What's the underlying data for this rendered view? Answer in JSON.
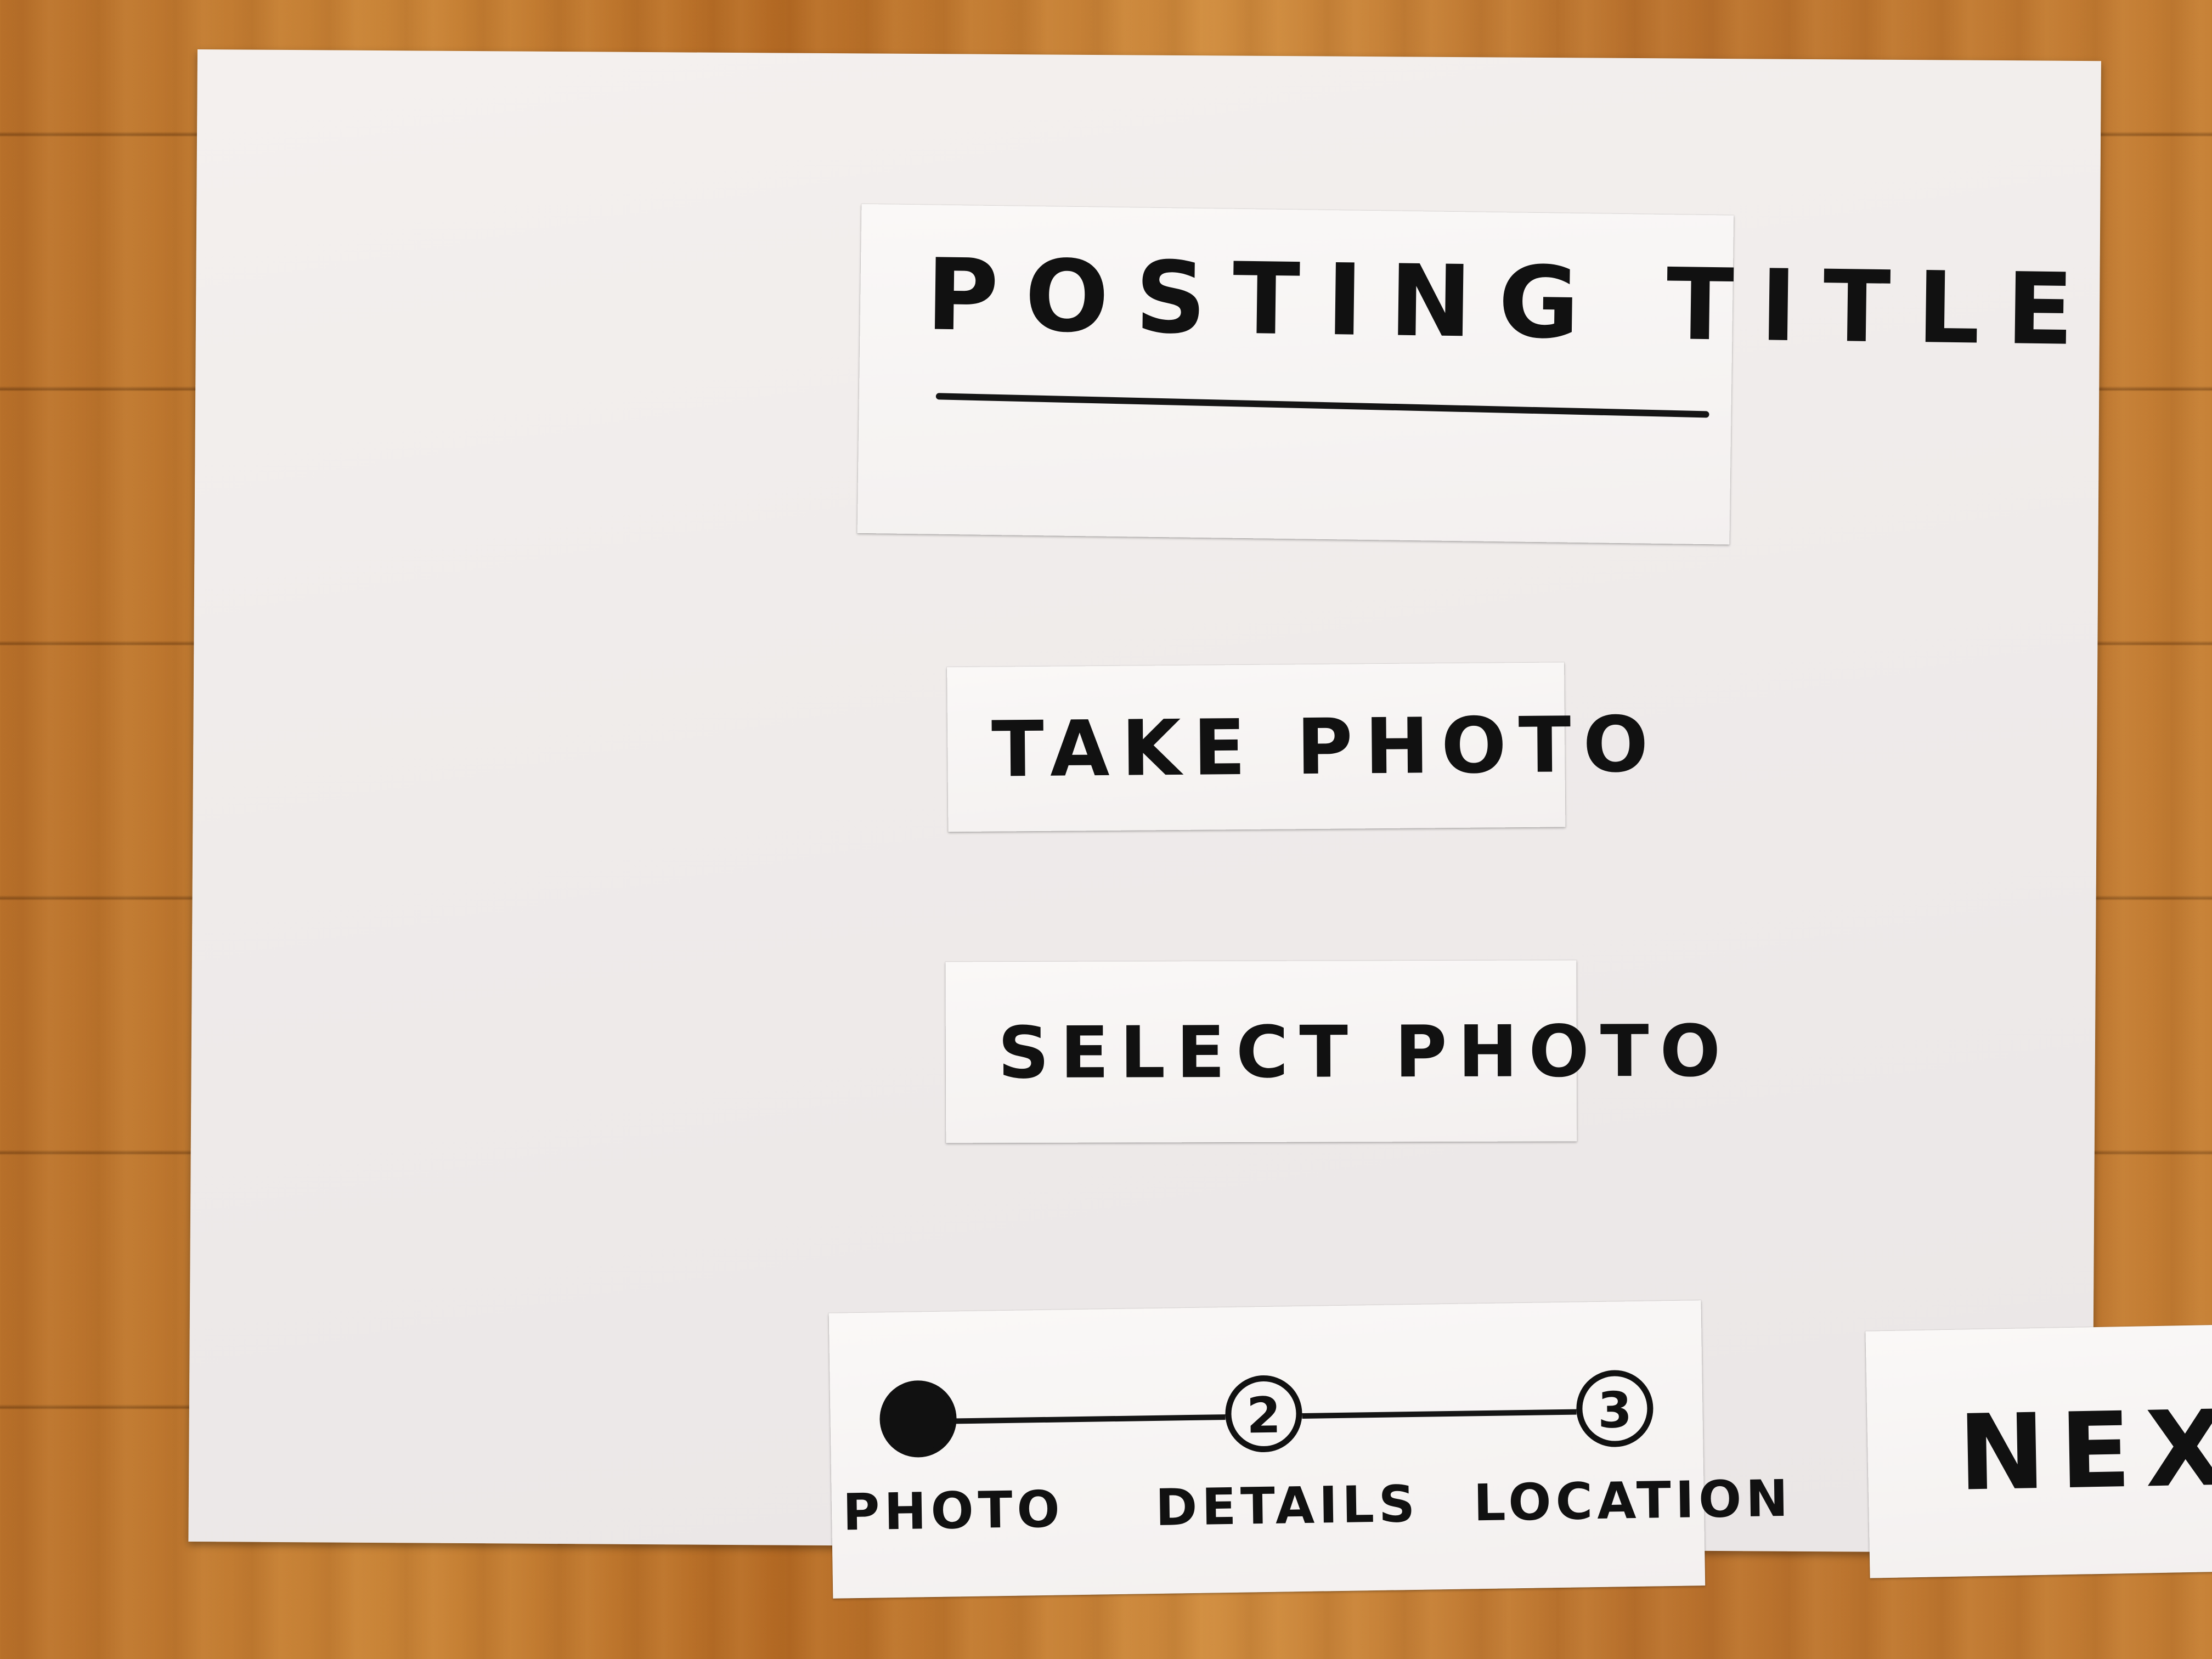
{
  "header": {
    "title": "POSTING TITLE"
  },
  "actions": {
    "take_photo_label": "TAKE PHOTO",
    "select_photo_label": "SELECT PHOTO"
  },
  "stepper": {
    "steps": [
      {
        "number": "",
        "label": "PHOTO",
        "state": "complete"
      },
      {
        "number": "2",
        "label": "DETAILS",
        "state": "pending"
      },
      {
        "number": "3",
        "label": "LOCATION",
        "state": "pending"
      }
    ]
  },
  "footer": {
    "next_label": "NEXT"
  }
}
